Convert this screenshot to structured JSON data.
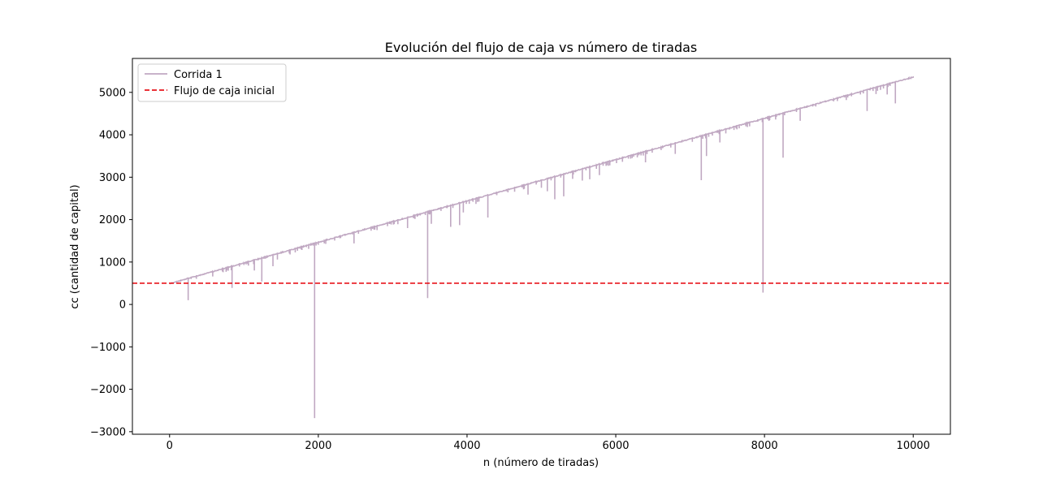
{
  "chart_data": {
    "type": "line",
    "title": "Evolución del flujo de caja vs número de tiradas",
    "xlabel": "n (número de tiradas)",
    "ylabel": "cc (cantidad de capital)",
    "xlim": [
      -500,
      10500
    ],
    "ylim": [
      -3060,
      5800
    ],
    "xticks": [
      0,
      2000,
      4000,
      6000,
      8000,
      10000
    ],
    "xtick_labels": [
      "0",
      "2000",
      "4000",
      "6000",
      "8000",
      "10000"
    ],
    "yticks": [
      -3000,
      -2000,
      -1000,
      0,
      1000,
      2000,
      3000,
      4000,
      5000
    ],
    "ytick_labels": [
      "−3000",
      "−2000",
      "−1000",
      "0",
      "1000",
      "2000",
      "3000",
      "4000",
      "5000"
    ],
    "grid": false,
    "legend_position": "top-left",
    "series": [
      {
        "name": "Corrida 1",
        "color": "#c0a8c2",
        "style": "solid",
        "trend": {
          "x": [
            0,
            10000
          ],
          "y": [
            500,
            5370
          ]
        },
        "drops": [
          {
            "x": 250,
            "y": 100
          },
          {
            "x": 580,
            "y": 660
          },
          {
            "x": 720,
            "y": 760
          },
          {
            "x": 840,
            "y": 390
          },
          {
            "x": 1000,
            "y": 930
          },
          {
            "x": 1140,
            "y": 800
          },
          {
            "x": 1240,
            "y": 540
          },
          {
            "x": 1390,
            "y": 900
          },
          {
            "x": 1450,
            "y": 1060
          },
          {
            "x": 1950,
            "y": -2680
          },
          {
            "x": 2480,
            "y": 1440
          },
          {
            "x": 2750,
            "y": 1760
          },
          {
            "x": 3200,
            "y": 1800
          },
          {
            "x": 3470,
            "y": 150
          },
          {
            "x": 3520,
            "y": 1900
          },
          {
            "x": 3780,
            "y": 1830
          },
          {
            "x": 3900,
            "y": 1870
          },
          {
            "x": 3950,
            "y": 2170
          },
          {
            "x": 4120,
            "y": 2370
          },
          {
            "x": 4280,
            "y": 2050
          },
          {
            "x": 4820,
            "y": 2590
          },
          {
            "x": 5000,
            "y": 2750
          },
          {
            "x": 5080,
            "y": 2670
          },
          {
            "x": 5180,
            "y": 2480
          },
          {
            "x": 5300,
            "y": 2550
          },
          {
            "x": 5420,
            "y": 2960
          },
          {
            "x": 5550,
            "y": 2920
          },
          {
            "x": 5650,
            "y": 2950
          },
          {
            "x": 5780,
            "y": 3050
          },
          {
            "x": 6400,
            "y": 3350
          },
          {
            "x": 6800,
            "y": 3550
          },
          {
            "x": 7150,
            "y": 2930
          },
          {
            "x": 7220,
            "y": 3500
          },
          {
            "x": 7400,
            "y": 3820
          },
          {
            "x": 7980,
            "y": 280
          },
          {
            "x": 8250,
            "y": 3460
          },
          {
            "x": 8480,
            "y": 4330
          },
          {
            "x": 9100,
            "y": 4820
          },
          {
            "x": 9380,
            "y": 4560
          },
          {
            "x": 9500,
            "y": 4960
          },
          {
            "x": 9650,
            "y": 4950
          },
          {
            "x": 9760,
            "y": 4740
          }
        ]
      },
      {
        "name": "Flujo de caja inicial",
        "color": "#e8151d",
        "style": "dashed",
        "y": 500
      }
    ]
  }
}
